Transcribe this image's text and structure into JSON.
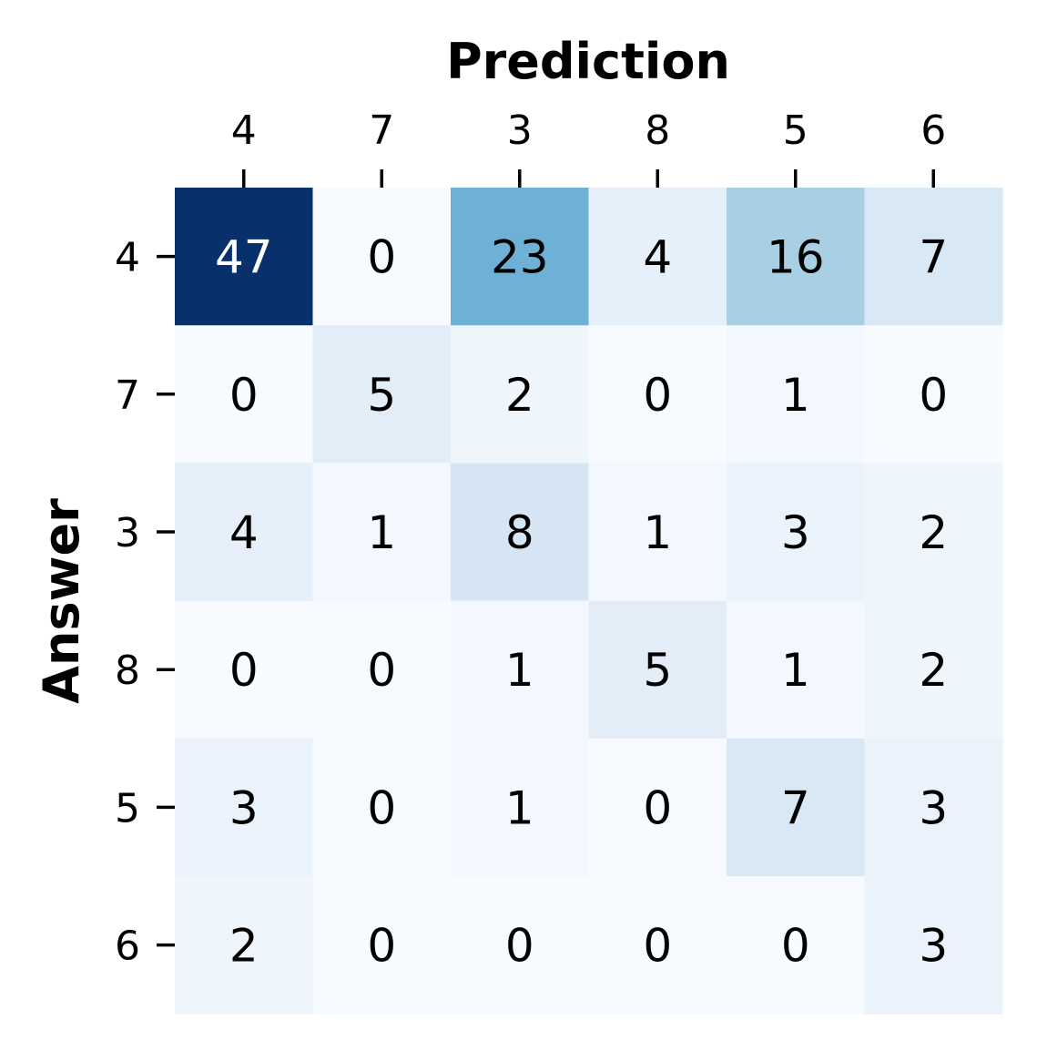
{
  "chart_data": {
    "type": "heatmap",
    "xlabel": "Prediction",
    "ylabel": "Answer",
    "x_categories": [
      "4",
      "7",
      "3",
      "8",
      "5",
      "6"
    ],
    "y_categories": [
      "4",
      "7",
      "3",
      "8",
      "5",
      "6"
    ],
    "values": [
      [
        47,
        0,
        23,
        4,
        16,
        7
      ],
      [
        0,
        5,
        2,
        0,
        1,
        0
      ],
      [
        4,
        1,
        8,
        1,
        3,
        2
      ],
      [
        0,
        0,
        1,
        5,
        1,
        2
      ],
      [
        3,
        0,
        1,
        0,
        7,
        3
      ],
      [
        2,
        0,
        0,
        0,
        0,
        3
      ]
    ],
    "colormap": "Blues",
    "value_range": [
      0,
      47
    ],
    "x_axis_position": "top",
    "colorbar": false,
    "annotated": true,
    "text_color_dark": "#000000",
    "text_color_light": "#ffffff"
  }
}
